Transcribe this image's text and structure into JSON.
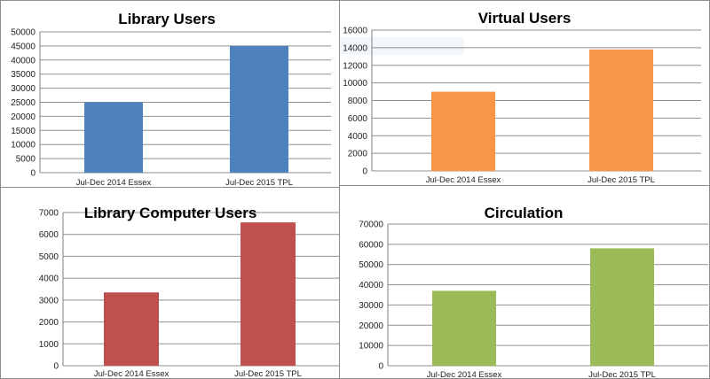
{
  "chart_data": [
    {
      "type": "bar",
      "title": "Library Users",
      "categories": [
        "Jul-Dec 2014 Essex",
        "Jul-Dec 2015 TPL"
      ],
      "values": [
        25000,
        45000
      ],
      "ylim": [
        0,
        50000
      ],
      "ytick_step": 5000,
      "color": "#4f81bd",
      "grid": true,
      "legend": "none"
    },
    {
      "type": "bar",
      "title": "Virtual Users",
      "categories": [
        "Jul-Dec 2014 Essex",
        "Jul-Dec 2015 TPL"
      ],
      "values": [
        9000,
        13800
      ],
      "ylim": [
        0,
        16000
      ],
      "ytick_step": 2000,
      "color": "#f79646",
      "grid": true,
      "legend": "none"
    },
    {
      "type": "bar",
      "title": "Library Computer Users",
      "categories": [
        "Jul-Dec 2014 Essex",
        "Jul-Dec 2015 TPL"
      ],
      "values": [
        3350,
        6550
      ],
      "ylim": [
        0,
        7000
      ],
      "ytick_step": 1000,
      "color": "#c0504d",
      "grid": true,
      "legend": "none"
    },
    {
      "type": "bar",
      "title": "Circulation",
      "categories": [
        "Jul-Dec 2014 Essex",
        "Jul-Dec 2015 TPL"
      ],
      "values": [
        37000,
        58000
      ],
      "ylim": [
        0,
        70000
      ],
      "ytick_step": 10000,
      "color": "#9bbb59",
      "grid": true,
      "legend": "none"
    }
  ]
}
